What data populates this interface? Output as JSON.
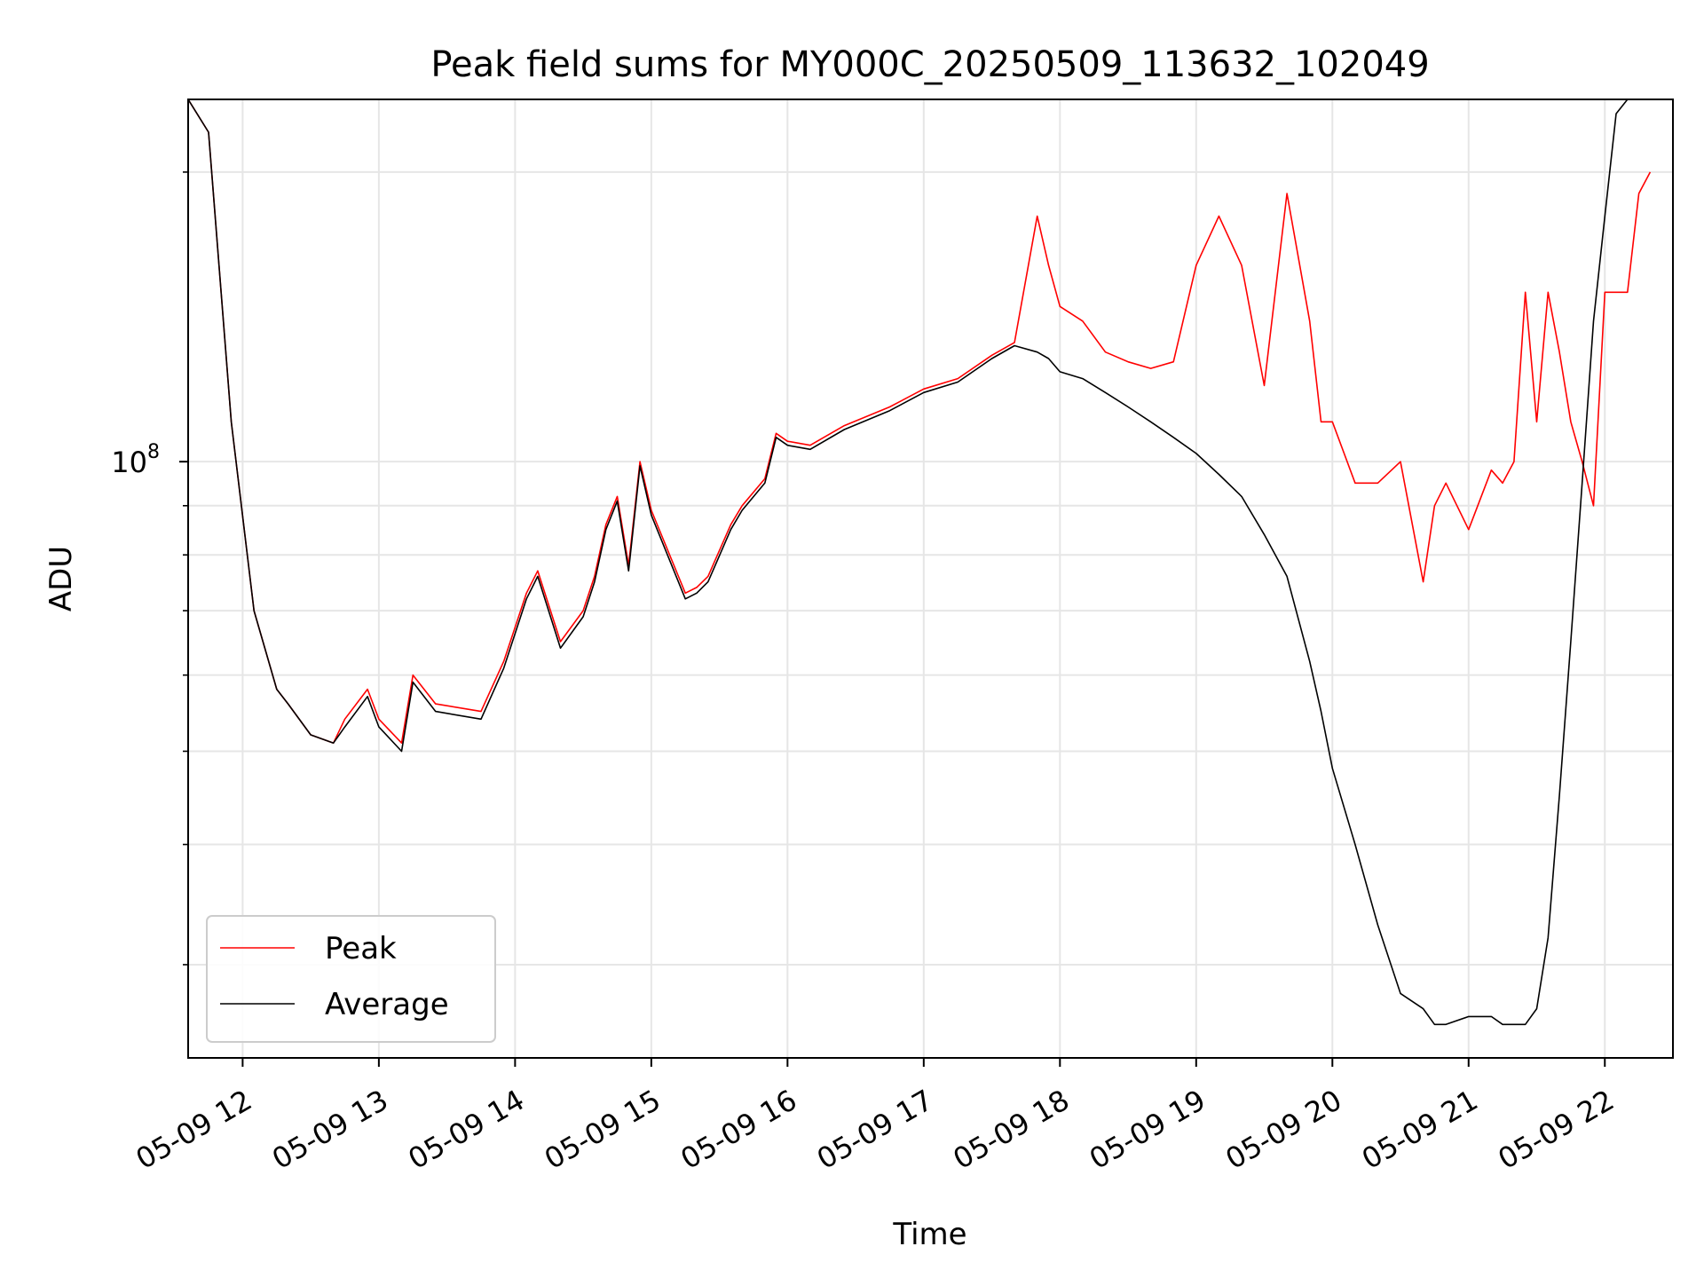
{
  "chart_data": {
    "type": "line",
    "title": "Peak field sums for MY000C_20250509_113632_102049",
    "xlabel": "Time",
    "ylabel": "ADU",
    "yscale": "log",
    "ylim": [
      24000000,
      238000000
    ],
    "xlim": [
      "2025-05-09 11:36",
      "2025-05-09 22:30"
    ],
    "grid": true,
    "legend_position": "lower-left",
    "x_ticks": [
      "05-09 12",
      "05-09 13",
      "05-09 14",
      "05-09 15",
      "05-09 16",
      "05-09 17",
      "05-09 18",
      "05-09 19",
      "05-09 20",
      "05-09 21",
      "05-09 22"
    ],
    "y_ticks": [
      {
        "value": 100000000,
        "base": "10",
        "exponent": "8"
      }
    ],
    "series": [
      {
        "name": "Peak",
        "color": "#ff0000",
        "x": [
          "2025-05-09 11:36",
          "2025-05-09 11:45",
          "2025-05-09 11:55",
          "2025-05-09 12:05",
          "2025-05-09 12:15",
          "2025-05-09 12:20",
          "2025-05-09 12:30",
          "2025-05-09 12:40",
          "2025-05-09 12:45",
          "2025-05-09 12:55",
          "2025-05-09 13:00",
          "2025-05-09 13:10",
          "2025-05-09 13:15",
          "2025-05-09 13:25",
          "2025-05-09 13:45",
          "2025-05-09 13:55",
          "2025-05-09 14:05",
          "2025-05-09 14:10",
          "2025-05-09 14:20",
          "2025-05-09 14:30",
          "2025-05-09 14:35",
          "2025-05-09 14:40",
          "2025-05-09 14:45",
          "2025-05-09 14:50",
          "2025-05-09 14:55",
          "2025-05-09 15:00",
          "2025-05-09 15:15",
          "2025-05-09 15:20",
          "2025-05-09 15:25",
          "2025-05-09 15:35",
          "2025-05-09 15:40",
          "2025-05-09 15:50",
          "2025-05-09 15:55",
          "2025-05-09 16:00",
          "2025-05-09 16:10",
          "2025-05-09 16:25",
          "2025-05-09 16:45",
          "2025-05-09 17:00",
          "2025-05-09 17:15",
          "2025-05-09 17:30",
          "2025-05-09 17:40",
          "2025-05-09 17:50",
          "2025-05-09 17:55",
          "2025-05-09 18:00",
          "2025-05-09 18:10",
          "2025-05-09 18:20",
          "2025-05-09 18:30",
          "2025-05-09 18:40",
          "2025-05-09 18:50",
          "2025-05-09 19:00",
          "2025-05-09 19:10",
          "2025-05-09 19:20",
          "2025-05-09 19:30",
          "2025-05-09 19:40",
          "2025-05-09 19:50",
          "2025-05-09 19:55",
          "2025-05-09 20:00",
          "2025-05-09 20:10",
          "2025-05-09 20:20",
          "2025-05-09 20:30",
          "2025-05-09 20:40",
          "2025-05-09 20:45",
          "2025-05-09 20:50",
          "2025-05-09 21:00",
          "2025-05-09 21:10",
          "2025-05-09 21:15",
          "2025-05-09 21:20",
          "2025-05-09 21:25",
          "2025-05-09 21:30",
          "2025-05-09 21:35",
          "2025-05-09 21:40",
          "2025-05-09 21:45",
          "2025-05-09 21:50",
          "2025-05-09 21:55",
          "2025-05-09 22:00",
          "2025-05-09 22:05",
          "2025-05-09 22:10",
          "2025-05-09 22:15",
          "2025-05-09 22:20"
        ],
        "values": [
          250000000,
          220000000,
          110000000,
          70000000,
          58000000,
          56000000,
          52000000,
          51000000,
          54000000,
          58000000,
          54000000,
          51000000,
          60000000,
          56000000,
          55000000,
          62000000,
          73000000,
          77000000,
          65000000,
          70000000,
          76000000,
          86000000,
          92000000,
          78000000,
          100000000,
          89000000,
          73000000,
          74000000,
          76000000,
          86000000,
          90000000,
          96000000,
          107000000,
          105000000,
          104000000,
          109000000,
          114000000,
          119000000,
          122000000,
          129000000,
          133000000,
          180000000,
          160000000,
          145000000,
          140000000,
          130000000,
          127000000,
          125000000,
          127000000,
          160000000,
          180000000,
          160000000,
          120000000,
          190000000,
          140000000,
          110000000,
          110000000,
          95000000,
          95000000,
          100000000,
          75000000,
          90000000,
          95000000,
          85000000,
          98000000,
          95000000,
          100000000,
          150000000,
          110000000,
          150000000,
          130000000,
          110000000,
          100000000,
          90000000,
          150000000,
          150000000,
          150000000,
          190000000,
          200000000
        ]
      },
      {
        "name": "Average",
        "color": "#000000",
        "x": [
          "2025-05-09 11:36",
          "2025-05-09 11:45",
          "2025-05-09 11:55",
          "2025-05-09 12:05",
          "2025-05-09 12:15",
          "2025-05-09 12:20",
          "2025-05-09 12:30",
          "2025-05-09 12:40",
          "2025-05-09 12:45",
          "2025-05-09 12:55",
          "2025-05-09 13:00",
          "2025-05-09 13:10",
          "2025-05-09 13:15",
          "2025-05-09 13:25",
          "2025-05-09 13:45",
          "2025-05-09 13:55",
          "2025-05-09 14:05",
          "2025-05-09 14:10",
          "2025-05-09 14:20",
          "2025-05-09 14:30",
          "2025-05-09 14:35",
          "2025-05-09 14:40",
          "2025-05-09 14:45",
          "2025-05-09 14:50",
          "2025-05-09 14:55",
          "2025-05-09 15:00",
          "2025-05-09 15:15",
          "2025-05-09 15:20",
          "2025-05-09 15:25",
          "2025-05-09 15:35",
          "2025-05-09 15:40",
          "2025-05-09 15:50",
          "2025-05-09 15:55",
          "2025-05-09 16:00",
          "2025-05-09 16:10",
          "2025-05-09 16:25",
          "2025-05-09 16:45",
          "2025-05-09 17:00",
          "2025-05-09 17:15",
          "2025-05-09 17:30",
          "2025-05-09 17:40",
          "2025-05-09 17:50",
          "2025-05-09 17:55",
          "2025-05-09 18:00",
          "2025-05-09 18:10",
          "2025-05-09 18:20",
          "2025-05-09 18:30",
          "2025-05-09 18:40",
          "2025-05-09 18:50",
          "2025-05-09 19:00",
          "2025-05-09 19:10",
          "2025-05-09 19:20",
          "2025-05-09 19:30",
          "2025-05-09 19:40",
          "2025-05-09 19:50",
          "2025-05-09 19:55",
          "2025-05-09 20:00",
          "2025-05-09 20:10",
          "2025-05-09 20:20",
          "2025-05-09 20:30",
          "2025-05-09 20:40",
          "2025-05-09 20:45",
          "2025-05-09 20:50",
          "2025-05-09 21:00",
          "2025-05-09 21:10",
          "2025-05-09 21:15",
          "2025-05-09 21:20",
          "2025-05-09 21:25",
          "2025-05-09 21:30",
          "2025-05-09 21:35",
          "2025-05-09 21:40",
          "2025-05-09 21:45",
          "2025-05-09 21:50",
          "2025-05-09 21:55",
          "2025-05-09 22:00",
          "2025-05-09 22:05",
          "2025-05-09 22:10",
          "2025-05-09 22:15",
          "2025-05-09 22:20"
        ],
        "values": [
          250000000,
          220000000,
          110000000,
          70000000,
          58000000,
          56000000,
          52000000,
          51000000,
          53000000,
          57000000,
          53000000,
          50000000,
          59000000,
          55000000,
          54000000,
          61000000,
          72000000,
          76000000,
          64000000,
          69000000,
          75000000,
          85000000,
          91000000,
          77000000,
          99000000,
          88000000,
          72000000,
          73000000,
          75000000,
          85000000,
          89000000,
          95000000,
          106000000,
          104000000,
          103000000,
          108000000,
          113000000,
          118000000,
          121000000,
          128000000,
          132000000,
          130000000,
          128000000,
          124000000,
          122000000,
          118000000,
          114000000,
          110000000,
          106000000,
          102000000,
          97000000,
          92000000,
          84000000,
          76000000,
          62000000,
          55000000,
          48000000,
          40000000,
          33000000,
          28000000,
          27000000,
          26000000,
          26000000,
          26500000,
          26500000,
          26000000,
          26000000,
          26000000,
          27000000,
          32000000,
          45000000,
          65000000,
          95000000,
          140000000,
          180000000,
          230000000,
          240000000,
          240000000,
          240000000
        ]
      }
    ]
  }
}
